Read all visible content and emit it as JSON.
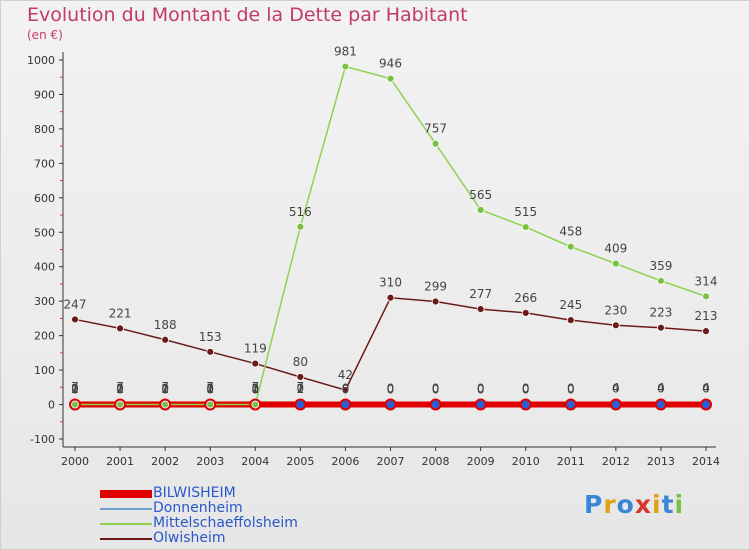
{
  "title": "Evolution du Montant de la Dette par Habitant",
  "subtitle": "(en €)",
  "logo": {
    "text": "Proxiti",
    "colors": [
      "#3a86d4",
      "#e0a11a",
      "#3a86d4",
      "#d6362e",
      "#e0a11a",
      "#3a86d4",
      "#7ac143"
    ]
  },
  "chart_data": {
    "type": "line",
    "title": "Evolution du Montant de la Dette par Habitant",
    "ylabel": "(en €)",
    "xlabel": "",
    "x": [
      "2000",
      "2001",
      "2002",
      "2003",
      "2004",
      "2005",
      "2006",
      "2007",
      "2008",
      "2009",
      "2010",
      "2011",
      "2012",
      "2013",
      "2014"
    ],
    "ylim": [
      -100,
      1000
    ],
    "yticks": [
      -100,
      0,
      100,
      200,
      300,
      400,
      500,
      600,
      700,
      800,
      900,
      1000
    ],
    "grid": false,
    "legend": "bottom-left",
    "series": [
      {
        "name": "BILWISHEIM",
        "color": "#e00000",
        "marker": "#2d5fd4",
        "values": [
          0,
          0,
          0,
          0,
          0,
          0,
          0,
          0,
          0,
          0,
          0,
          0,
          0,
          0,
          0
        ],
        "labels": [
          "0",
          "0",
          "0",
          "0",
          "0",
          "0",
          "0",
          "0",
          "0",
          "0",
          "0",
          "0",
          "0",
          "0",
          "0"
        ],
        "label_dy": -12
      },
      {
        "name": "Donnenheim",
        "color": "#6a9fd0",
        "marker": "#2d5fd4",
        "values": [
          1,
          1,
          1,
          1,
          1,
          1,
          0,
          0,
          0,
          0,
          0,
          0,
          4,
          4,
          4
        ],
        "labels": [
          "1",
          "1",
          "1",
          "1",
          "1",
          "1",
          "0",
          "0",
          "0",
          "0",
          "0",
          "0",
          "4",
          "4",
          "4"
        ],
        "label_dy": -11
      },
      {
        "name": "Mittelschaeffolsheim",
        "color": "#8fd14f",
        "marker": "#7ac143",
        "values": [
          0,
          0,
          0,
          0,
          0,
          516,
          981,
          946,
          757,
          565,
          515,
          458,
          409,
          359,
          314
        ],
        "labels": [
          "0",
          "0",
          "0",
          "0",
          "0",
          "516",
          "981",
          "946",
          "757",
          "565",
          "515",
          "458",
          "409",
          "359",
          "314"
        ],
        "label_dy": -11
      },
      {
        "name": "Olwisheim",
        "color": "#6b1a1a",
        "marker": "#6b1a1a",
        "values": [
          247,
          221,
          188,
          153,
          119,
          80,
          42,
          310,
          299,
          277,
          266,
          245,
          230,
          223,
          213
        ],
        "labels": [
          "247",
          "221",
          "188",
          "153",
          "119",
          "80",
          "42",
          "310",
          "299",
          "277",
          "266",
          "245",
          "230",
          "223",
          "213"
        ],
        "label_dy": -11
      },
      {
        "name": "",
        "color": "#e0a11a",
        "marker": "#e0a11a",
        "values": [
          7,
          7,
          7,
          7,
          7,
          7,
          null,
          null,
          null,
          null,
          null,
          null,
          null,
          null,
          null
        ],
        "labels": [
          "7",
          "7",
          "7",
          "7",
          "7",
          "7",
          "",
          "",
          "",
          "",
          "",
          "",
          "",
          "",
          ""
        ],
        "label_dy": -11
      },
      {
        "name": "",
        "color": "#999999",
        "marker": "#999999",
        "values": [
          2,
          2,
          2,
          3,
          3,
          2,
          null,
          null,
          null,
          null,
          null,
          null,
          null,
          null,
          null
        ],
        "labels": [
          "2",
          "2",
          "2",
          "3",
          "3",
          "2",
          "",
          "",
          "",
          "",
          "",
          "",
          "",
          "",
          ""
        ],
        "label_dy": -11
      }
    ]
  }
}
